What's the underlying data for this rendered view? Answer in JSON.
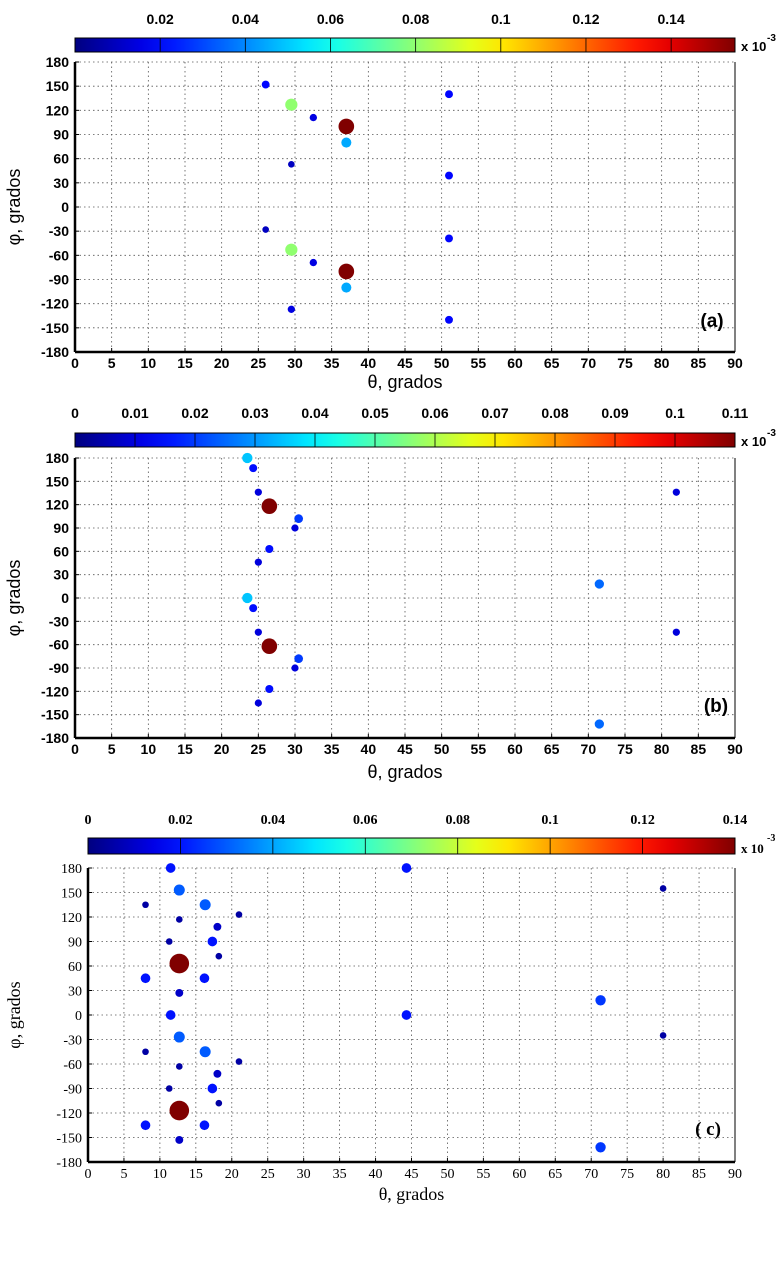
{
  "chart_data": [
    {
      "type": "scatter",
      "panel_label": "(a)",
      "xlabel": "θ, grados",
      "ylabel": "φ, grados",
      "xlim": [
        0,
        90
      ],
      "ylim": [
        -180,
        180
      ],
      "xticks": [
        "0",
        "5",
        "10",
        "15",
        "20",
        "25",
        "30",
        "35",
        "40",
        "45",
        "50",
        "55",
        "60",
        "65",
        "70",
        "75",
        "80",
        "85",
        "90"
      ],
      "yticks": [
        "180",
        "150",
        "120",
        "90",
        "60",
        "30",
        "0",
        "-30",
        "-60",
        "-90",
        "-120",
        "-150",
        "-180"
      ],
      "colorbar": {
        "min": 0,
        "max": 0.155,
        "ticks": [
          "0.02",
          "0.04",
          "0.06",
          "0.08",
          "0.1",
          "0.12",
          "0.14"
        ],
        "tick_values": [
          0.02,
          0.04,
          0.06,
          0.08,
          0.1,
          0.12,
          0.14
        ],
        "multiplier": "x 10",
        "exponent": "-3"
      },
      "points": [
        {
          "x": 26.0,
          "y": 152,
          "v": 0.02
        },
        {
          "x": 29.5,
          "y": 127,
          "v": 0.08
        },
        {
          "x": 32.5,
          "y": 111,
          "v": 0.015
        },
        {
          "x": 37.0,
          "y": 100,
          "v": 0.155
        },
        {
          "x": 37.0,
          "y": 80,
          "v": 0.045
        },
        {
          "x": 51.0,
          "y": 140,
          "v": 0.02
        },
        {
          "x": 29.5,
          "y": 53,
          "v": 0.01
        },
        {
          "x": 51.0,
          "y": 39,
          "v": 0.02
        },
        {
          "x": 26.0,
          "y": -28,
          "v": 0.01
        },
        {
          "x": 51.0,
          "y": -39,
          "v": 0.02
        },
        {
          "x": 29.5,
          "y": -53,
          "v": 0.08
        },
        {
          "x": 32.5,
          "y": -69,
          "v": 0.015
        },
        {
          "x": 37.0,
          "y": -80,
          "v": 0.155
        },
        {
          "x": 37.0,
          "y": -100,
          "v": 0.045
        },
        {
          "x": 29.5,
          "y": -127,
          "v": 0.015
        },
        {
          "x": 51.0,
          "y": -140,
          "v": 0.02
        }
      ]
    },
    {
      "type": "scatter",
      "panel_label": "(b)",
      "xlabel": "θ, grados",
      "ylabel": "φ, grados",
      "xlim": [
        0,
        90
      ],
      "ylim": [
        -180,
        180
      ],
      "xticks": [
        "0",
        "5",
        "10",
        "15",
        "20",
        "25",
        "30",
        "35",
        "40",
        "45",
        "50",
        "55",
        "60",
        "65",
        "70",
        "75",
        "80",
        "85",
        "90"
      ],
      "yticks": [
        "180",
        "150",
        "120",
        "90",
        "60",
        "30",
        "0",
        "-30",
        "-60",
        "-90",
        "-120",
        "-150",
        "-180"
      ],
      "colorbar": {
        "min": 0,
        "max": 0.11,
        "ticks": [
          "0",
          "0.01",
          "0.02",
          "0.03",
          "0.04",
          "0.05",
          "0.06",
          "0.07",
          "0.08",
          "0.09",
          "0.1",
          "0.11"
        ],
        "tick_values": [
          0,
          0.01,
          0.02,
          0.03,
          0.04,
          0.05,
          0.06,
          0.07,
          0.08,
          0.09,
          0.1,
          0.11
        ],
        "multiplier": "x 10",
        "exponent": "-3"
      },
      "points": [
        {
          "x": 23.5,
          "y": 180,
          "v": 0.035
        },
        {
          "x": 24.3,
          "y": 167,
          "v": 0.015
        },
        {
          "x": 25.0,
          "y": 136,
          "v": 0.01
        },
        {
          "x": 26.5,
          "y": 118,
          "v": 0.11
        },
        {
          "x": 30.5,
          "y": 102,
          "v": 0.02
        },
        {
          "x": 30.0,
          "y": 90,
          "v": 0.01
        },
        {
          "x": 26.5,
          "y": 63,
          "v": 0.015
        },
        {
          "x": 25.0,
          "y": 46,
          "v": 0.01
        },
        {
          "x": 23.5,
          "y": 0,
          "v": 0.035
        },
        {
          "x": 24.3,
          "y": -13,
          "v": 0.015
        },
        {
          "x": 25.0,
          "y": -44,
          "v": 0.01
        },
        {
          "x": 26.5,
          "y": -62,
          "v": 0.11
        },
        {
          "x": 30.5,
          "y": -78,
          "v": 0.02
        },
        {
          "x": 30.0,
          "y": -90,
          "v": 0.01
        },
        {
          "x": 26.5,
          "y": -117,
          "v": 0.015
        },
        {
          "x": 25.0,
          "y": -135,
          "v": 0.01
        },
        {
          "x": 71.5,
          "y": 18,
          "v": 0.025
        },
        {
          "x": 71.5,
          "y": -162,
          "v": 0.025
        },
        {
          "x": 82.0,
          "y": 136,
          "v": 0.01
        },
        {
          "x": 82.0,
          "y": -44,
          "v": 0.01
        }
      ]
    },
    {
      "type": "scatter",
      "panel_label": "( c)",
      "xlabel": "θ, grados",
      "ylabel": "φ, grados",
      "xlim": [
        0,
        90
      ],
      "ylim": [
        -180,
        180
      ],
      "xticks": [
        "0",
        "5",
        "10",
        "15",
        "20",
        "25",
        "30",
        "35",
        "40",
        "45",
        "50",
        "55",
        "60",
        "65",
        "70",
        "75",
        "80",
        "85",
        "90"
      ],
      "yticks": [
        "180",
        "150",
        "120",
        "90",
        "60",
        "30",
        "0",
        "-30",
        "-60",
        "-90",
        "-120",
        "-150",
        "-180"
      ],
      "colorbar": {
        "min": 0,
        "max": 0.14,
        "ticks": [
          "0",
          "0.02",
          "0.04",
          "0.06",
          "0.08",
          "0.1",
          "0.12",
          "0.14"
        ],
        "tick_values": [
          0,
          0.02,
          0.04,
          0.06,
          0.08,
          0.1,
          0.12,
          0.14
        ],
        "multiplier": "x 10",
        "exponent": "-3"
      },
      "points": [
        {
          "x": 11.5,
          "y": 180,
          "v": 0.02
        },
        {
          "x": 12.7,
          "y": 153,
          "v": 0.03
        },
        {
          "x": 16.3,
          "y": 135,
          "v": 0.03
        },
        {
          "x": 8.0,
          "y": 135,
          "v": 0.005
        },
        {
          "x": 12.7,
          "y": 117,
          "v": 0.005
        },
        {
          "x": 18.0,
          "y": 108,
          "v": 0.01
        },
        {
          "x": 21.0,
          "y": 123,
          "v": 0.005
        },
        {
          "x": 17.3,
          "y": 90,
          "v": 0.02
        },
        {
          "x": 11.3,
          "y": 90,
          "v": 0.005
        },
        {
          "x": 18.2,
          "y": 72,
          "v": 0.005
        },
        {
          "x": 12.7,
          "y": 63,
          "v": 0.14
        },
        {
          "x": 8.0,
          "y": 45,
          "v": 0.02
        },
        {
          "x": 16.2,
          "y": 45,
          "v": 0.02
        },
        {
          "x": 12.7,
          "y": 27,
          "v": 0.01
        },
        {
          "x": 11.5,
          "y": 0,
          "v": 0.02
        },
        {
          "x": 12.7,
          "y": -27,
          "v": 0.03
        },
        {
          "x": 16.3,
          "y": -45,
          "v": 0.03
        },
        {
          "x": 8.0,
          "y": -45,
          "v": 0.005
        },
        {
          "x": 12.7,
          "y": -63,
          "v": 0.005
        },
        {
          "x": 18.0,
          "y": -72,
          "v": 0.01
        },
        {
          "x": 21.0,
          "y": -57,
          "v": 0.005
        },
        {
          "x": 17.3,
          "y": -90,
          "v": 0.02
        },
        {
          "x": 11.3,
          "y": -90,
          "v": 0.005
        },
        {
          "x": 18.2,
          "y": -108,
          "v": 0.005
        },
        {
          "x": 12.7,
          "y": -117,
          "v": 0.14
        },
        {
          "x": 8.0,
          "y": -135,
          "v": 0.02
        },
        {
          "x": 16.2,
          "y": -135,
          "v": 0.02
        },
        {
          "x": 12.7,
          "y": -153,
          "v": 0.01
        },
        {
          "x": 44.3,
          "y": 180,
          "v": 0.02
        },
        {
          "x": 44.3,
          "y": 0,
          "v": 0.02
        },
        {
          "x": 71.3,
          "y": 18,
          "v": 0.025
        },
        {
          "x": 71.3,
          "y": -162,
          "v": 0.025
        },
        {
          "x": 80.0,
          "y": 155,
          "v": 0.005
        },
        {
          "x": 80.0,
          "y": -25,
          "v": 0.005
        }
      ]
    }
  ]
}
